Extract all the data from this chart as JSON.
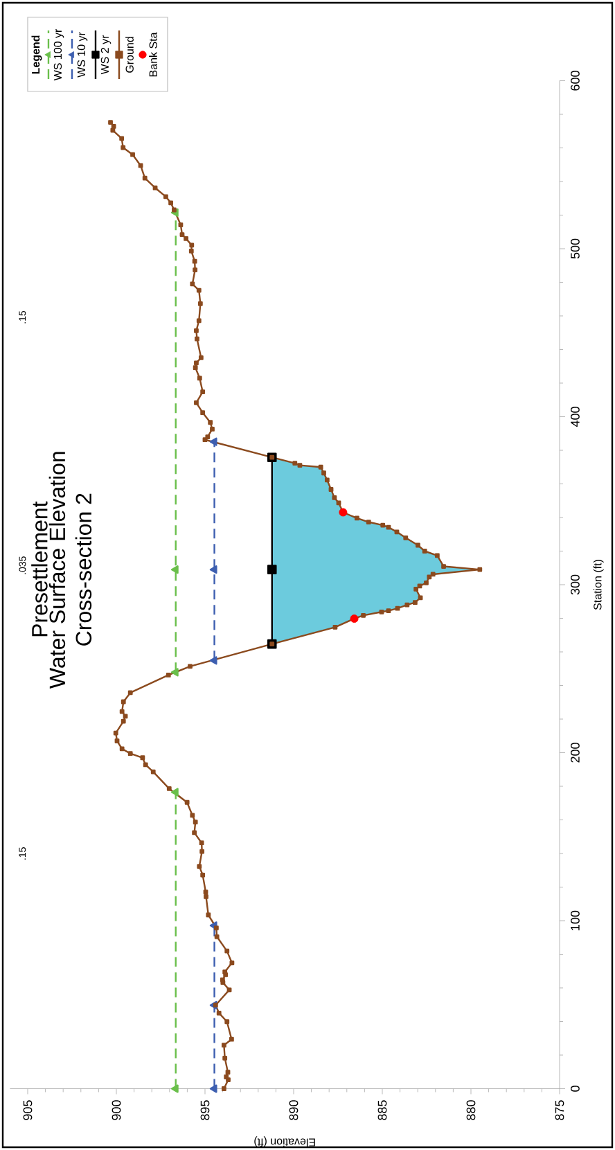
{
  "chart_data": {
    "type": "line",
    "title": "Presettlement",
    "subtitle": "Water Surface Elevation Cross-section 2",
    "xlabel": "Elevation (ft)",
    "ylabel": "Station (ft)",
    "legend_title": "Legend",
    "legend": "top left",
    "xlim": [
      906,
      875
    ],
    "xticks": [
      905,
      900,
      895,
      890,
      885,
      880,
      875
    ],
    "ylim": [
      0,
      600
    ],
    "yticks": [
      0,
      100,
      200,
      300,
      400,
      500,
      600
    ],
    "annotations": [
      ".15",
      ".035",
      ".15"
    ],
    "series": [
      {
        "type": "area",
        "color": "#6ccbdd",
        "x": [
          891.22,
          887.66,
          886.58,
          886.07,
          885.04,
          884.65,
          884.14,
          883.6,
          883.15,
          882.85,
          883.1,
          882.89,
          882.52,
          882.35,
          882.14,
          879.5,
          881.54,
          881.9,
          882.61,
          882.99,
          883.68,
          884.18,
          884.65,
          884.97,
          885.77,
          886.43,
          887.21,
          887.46,
          887.7,
          887.89,
          888.11,
          888.3,
          888.47,
          889.65,
          889.93,
          891.22
        ],
        "values": [
          264.7,
          274.7,
          279.8,
          281.7,
          283.8,
          284.5,
          285.9,
          288.0,
          289.4,
          292.2,
          297.4,
          299.2,
          301.1,
          304.6,
          306.2,
          309.0,
          310.9,
          317.4,
          320.0,
          323.5,
          327.9,
          331.4,
          334.2,
          335.4,
          337.3,
          339.6,
          343.1,
          348.7,
          351.8,
          356.7,
          362.3,
          366.5,
          370.0,
          371.1,
          372.3,
          375.8
        ]
      },
      {
        "name": "WS 100 yr",
        "type": "line",
        "color": "#6abf4b",
        "line_style": "dashed",
        "marker": "triangle",
        "x": [
          896.65,
          896.65
        ],
        "values": [
          0,
          176.5
        ]
      },
      {
        "type": "line",
        "color": "#6abf4b",
        "line_style": "dashed",
        "marker": "triangle",
        "x": [
          896.65,
          896.65,
          896.65
        ],
        "values": [
          247.9,
          309,
          521.5
        ]
      },
      {
        "name": "WS 10 yr",
        "type": "line",
        "color": "#3d5fb0",
        "line_style": "dashed",
        "marker": "triangle",
        "x": [
          894.47,
          894.47,
          894.47
        ],
        "values": [
          0,
          49.7,
          97.1
        ]
      },
      {
        "type": "line",
        "color": "#3d5fb0",
        "line_style": "dashed",
        "marker": "triangle",
        "x": [
          894.47,
          894.47,
          894.47
        ],
        "values": [
          254.9,
          309,
          385.1
        ]
      },
      {
        "name": "WS 2 yr",
        "type": "line",
        "color": "#000000",
        "line_style": "solid",
        "marker": "square",
        "x": [
          891.22,
          891.22,
          891.22
        ],
        "values": [
          264.7,
          309,
          375.8
        ]
      },
      {
        "name": "Ground",
        "type": "line",
        "color": "#8b4a1e",
        "line_style": "solid",
        "marker": "square",
        "x": [
          893.93,
          893.69,
          893.8,
          893.71,
          893.88,
          893.93,
          893.5,
          893.76,
          894.21,
          894.4,
          893.63,
          893.99,
          894.01,
          893.84,
          893.88,
          893.48,
          893.76,
          894.33,
          894.36,
          894.81,
          894.94,
          894.96,
          895.13,
          895.32,
          895.17,
          895.19,
          895.6,
          895.54,
          895.71,
          896.01,
          897.02,
          897.92,
          898.35,
          898.52,
          899.21,
          899.68,
          899.96,
          900.03,
          899.6,
          899.49,
          899.68,
          899.6,
          899.21,
          897.06,
          895.84,
          891.22,
          887.66,
          886.58,
          886.07,
          885.04,
          884.65,
          884.14,
          883.6,
          883.15,
          882.85,
          883.1,
          882.89,
          882.52,
          882.35,
          882.14,
          879.5,
          881.54,
          881.9,
          882.61,
          882.99,
          883.68,
          884.18,
          884.65,
          884.97,
          885.77,
          886.43,
          887.21,
          887.46,
          887.7,
          887.89,
          888.11,
          888.3,
          888.47,
          889.65,
          889.93,
          891.22,
          895.0,
          894.85,
          894.59,
          894.7,
          895.13,
          895.49,
          895.13,
          895.3,
          895.54,
          895.49,
          895.22,
          895.45,
          895.49,
          895.34,
          895.26,
          895.34,
          895.71,
          895.56,
          895.58,
          895.77,
          895.75,
          896.07,
          896.29,
          896.37,
          896.74,
          896.93,
          897.21,
          897.81,
          898.39,
          898.63,
          899.08,
          899.62,
          899.7,
          900.2,
          900.15,
          900.33
        ],
        "values": [
          0,
          5.3,
          7.0,
          9.8,
          18.2,
          25.9,
          29.4,
          39.9,
          45.0,
          49.7,
          58.8,
          63.2,
          64.8,
          67.9,
          69.5,
          74.9,
          81.9,
          90.5,
          95.7,
          103.4,
          114.3,
          117.1,
          127.2,
          132.3,
          141.2,
          146.3,
          152.4,
          158.7,
          162.7,
          170.4,
          178.6,
          188.6,
          192.8,
          197.0,
          199.5,
          202.3,
          207.0,
          211.7,
          218.7,
          221.7,
          224.5,
          230.3,
          235.7,
          246.2,
          251.4,
          264.7,
          274.7,
          279.8,
          281.7,
          283.8,
          284.5,
          285.9,
          288.0,
          289.4,
          292.2,
          297.4,
          299.2,
          301.1,
          304.6,
          306.2,
          309.0,
          310.9,
          317.4,
          320.0,
          323.5,
          327.9,
          331.4,
          334.2,
          335.4,
          337.3,
          339.6,
          343.1,
          348.7,
          351.8,
          356.7,
          362.3,
          366.5,
          370.0,
          371.1,
          372.3,
          375.8,
          386.3,
          388.0,
          392.6,
          396.6,
          402.4,
          408.3,
          414.8,
          422.9,
          429.2,
          432.0,
          435.1,
          446.3,
          451.2,
          457.2,
          467.3,
          475.2,
          479.0,
          487.4,
          492.5,
          498.6,
          502.1,
          506.0,
          508.4,
          514.2,
          523.1,
          527.3,
          531.0,
          536.2,
          542.0,
          549.5,
          556.0,
          560.2,
          565.6,
          570.5,
          572.8,
          575.2
        ]
      },
      {
        "name": "Bank Sta",
        "type": "scatter",
        "color": "#ff0000",
        "marker": "circle",
        "x": [
          886.58,
          887.21
        ],
        "values": [
          279.8,
          343.1
        ]
      }
    ]
  }
}
